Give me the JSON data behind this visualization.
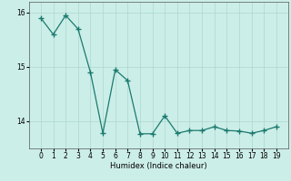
{
  "x": [
    0,
    1,
    2,
    3,
    4,
    5,
    6,
    7,
    8,
    9,
    10,
    11,
    12,
    13,
    14,
    15,
    16,
    17,
    18,
    19
  ],
  "y": [
    15.9,
    15.6,
    15.95,
    15.7,
    14.9,
    13.78,
    14.95,
    14.75,
    13.77,
    13.77,
    14.1,
    13.78,
    13.83,
    13.83,
    13.9,
    13.83,
    13.82,
    13.78,
    13.83,
    13.9
  ],
  "line_color": "#1a7a6e",
  "marker": "+",
  "markersize": 4,
  "linewidth": 0.9,
  "markeredgewidth": 1.0,
  "xlabel": "Humidex (Indice chaleur)",
  "ylim": [
    13.5,
    16.2
  ],
  "yticks": [
    14,
    15,
    16
  ],
  "xticks": [
    0,
    1,
    2,
    3,
    4,
    5,
    6,
    7,
    8,
    9,
    10,
    11,
    12,
    13,
    14,
    15,
    16,
    17,
    18,
    19
  ],
  "bg_color": "#cceee8",
  "grid_color": "#aad8d0",
  "axis_fontsize": 6,
  "tick_fontsize": 5.5
}
